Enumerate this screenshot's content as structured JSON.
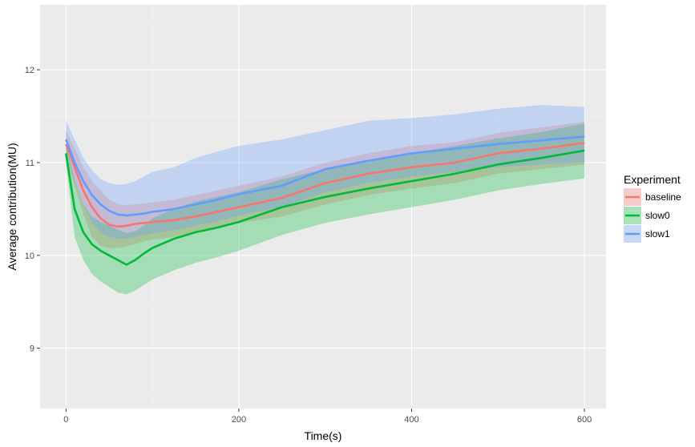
{
  "chart_data": {
    "type": "line",
    "xlabel": "Time(s)",
    "ylabel": "Average contribution(MU)",
    "xlim": [
      -30,
      625
    ],
    "ylim": [
      8.35,
      12.7
    ],
    "x_ticks": [
      0,
      200,
      400,
      600
    ],
    "y_ticks": [
      9,
      10,
      11,
      12
    ],
    "grid": true,
    "legend": {
      "title": "Experiment",
      "position": "right"
    },
    "x": [
      0,
      10,
      20,
      30,
      40,
      50,
      60,
      70,
      80,
      90,
      100,
      125,
      150,
      175,
      200,
      250,
      300,
      350,
      400,
      450,
      500,
      550,
      600
    ],
    "series": [
      {
        "name": "baseline",
        "color": "#F8766D",
        "values": [
          11.2,
          10.95,
          10.7,
          10.52,
          10.4,
          10.33,
          10.31,
          10.32,
          10.34,
          10.35,
          10.36,
          10.38,
          10.42,
          10.47,
          10.52,
          10.62,
          10.78,
          10.88,
          10.95,
          11.0,
          11.1,
          11.15,
          11.21
        ],
        "lower": [
          11.05,
          10.75,
          10.45,
          10.2,
          10.1,
          10.08,
          10.08,
          10.1,
          10.12,
          10.15,
          10.17,
          10.2,
          10.25,
          10.3,
          10.35,
          10.42,
          10.55,
          10.65,
          10.72,
          10.78,
          10.88,
          10.93,
          10.98
        ],
        "upper": [
          11.35,
          11.15,
          10.95,
          10.8,
          10.7,
          10.6,
          10.55,
          10.54,
          10.55,
          10.56,
          10.57,
          10.6,
          10.65,
          10.7,
          10.75,
          10.85,
          11.0,
          11.1,
          11.18,
          11.22,
          11.32,
          11.38,
          11.44
        ]
      },
      {
        "name": "slow0",
        "color": "#00BA38",
        "values": [
          11.1,
          10.5,
          10.25,
          10.12,
          10.05,
          10.0,
          9.95,
          9.9,
          9.95,
          10.02,
          10.08,
          10.18,
          10.25,
          10.3,
          10.36,
          10.52,
          10.63,
          10.72,
          10.8,
          10.88,
          10.98,
          11.05,
          11.13
        ],
        "lower": [
          11.0,
          10.2,
          9.95,
          9.8,
          9.72,
          9.66,
          9.6,
          9.58,
          9.62,
          9.68,
          9.74,
          9.84,
          9.92,
          9.98,
          10.05,
          10.22,
          10.35,
          10.44,
          10.52,
          10.6,
          10.7,
          10.77,
          10.83
        ],
        "upper": [
          11.2,
          10.82,
          10.55,
          10.42,
          10.36,
          10.32,
          10.28,
          10.24,
          10.26,
          10.32,
          10.4,
          10.5,
          10.58,
          10.63,
          10.68,
          10.82,
          10.93,
          11.02,
          11.1,
          11.18,
          11.26,
          11.33,
          11.42
        ]
      },
      {
        "name": "slow1",
        "color": "#619CFF",
        "values": [
          11.25,
          11.0,
          10.8,
          10.65,
          10.55,
          10.48,
          10.44,
          10.43,
          10.44,
          10.45,
          10.47,
          10.5,
          10.55,
          10.6,
          10.66,
          10.75,
          10.93,
          11.02,
          11.1,
          11.15,
          11.2,
          11.24,
          11.28
        ],
        "lower": [
          11.12,
          10.8,
          10.55,
          10.35,
          10.25,
          10.2,
          10.18,
          10.18,
          10.2,
          10.22,
          10.24,
          10.27,
          10.32,
          10.37,
          10.43,
          10.52,
          10.68,
          10.78,
          10.85,
          10.9,
          10.95,
          10.98,
          11.0
        ],
        "upper": [
          11.45,
          11.25,
          11.05,
          10.92,
          10.82,
          10.78,
          10.76,
          10.77,
          10.8,
          10.85,
          10.9,
          10.95,
          11.05,
          11.12,
          11.18,
          11.25,
          11.35,
          11.45,
          11.48,
          11.52,
          11.58,
          11.62,
          11.6
        ]
      }
    ]
  }
}
